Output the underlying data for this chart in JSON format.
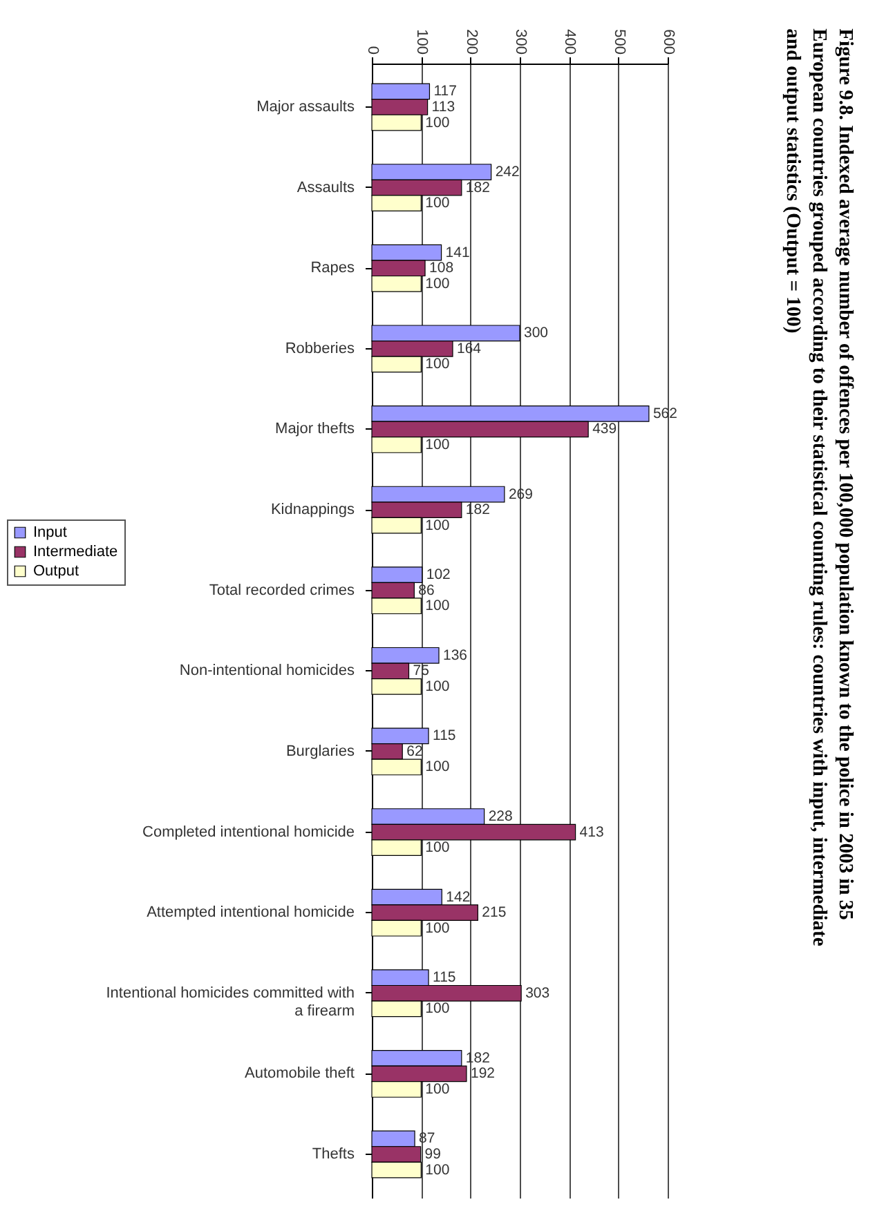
{
  "chart_data": {
    "type": "bar",
    "orientation": "horizontal",
    "title": "Figure 9.8. Indexed average number of offences per 100,000 population known to the police in 2003 in 35 European countries grouped according to their statistical counting rules: countries with input, intermediate and output statistics (Output = 100)",
    "categories": [
      "Major assaults",
      "Assaults",
      "Rapes",
      "Robberies",
      "Major thefts",
      "Kidnappings",
      "Total recorded crimes",
      "Non-intentional homicides",
      "Burglaries",
      "Completed intentional homicide",
      "Attempted intentional homicide",
      "Intentional homicides committed with a firearm",
      "Automobile theft",
      "Thefts"
    ],
    "series": [
      {
        "name": "Input",
        "color": "#9999ff",
        "values": [
          117,
          242,
          141,
          300,
          562,
          269,
          102,
          136,
          115,
          228,
          142,
          115,
          182,
          87
        ]
      },
      {
        "name": "Intermediate",
        "color": "#993366",
        "values": [
          113,
          182,
          108,
          164,
          439,
          182,
          86,
          75,
          62,
          413,
          215,
          303,
          192,
          99
        ]
      },
      {
        "name": "Output",
        "color": "#ffffcc",
        "values": [
          100,
          100,
          100,
          100,
          100,
          100,
          100,
          100,
          100,
          100,
          100,
          100,
          100,
          100
        ]
      }
    ],
    "xlim": [
      0,
      600
    ],
    "xticks": [
      0,
      100,
      200,
      300,
      400,
      500,
      600
    ],
    "grid": "x",
    "legend": "left",
    "data_labels": true
  }
}
